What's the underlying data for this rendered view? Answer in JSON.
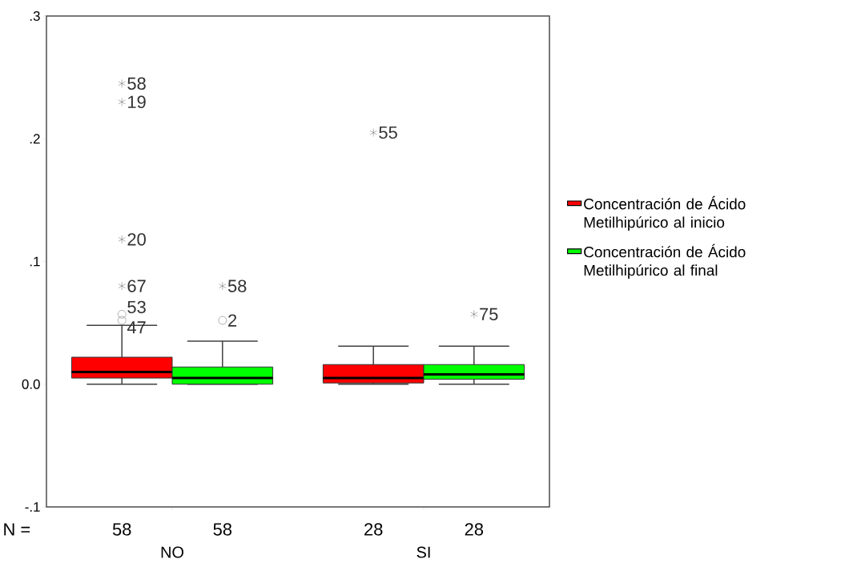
{
  "chart_data": {
    "type": "box",
    "categories": [
      "NO",
      "SI"
    ],
    "series": [
      {
        "name": "Concentración de Ácido Metilhipúrico al inicio",
        "color": "#ff0000",
        "boxes": [
          {
            "low": 0,
            "q1": 0.005,
            "median": 0.01,
            "q3": 0.022,
            "high": 0.048,
            "outliers": [
              0.245,
              0.23,
              0.118,
              0.08,
              0.057,
              0.052
            ]
          },
          {
            "low": 0,
            "q1": 0.001,
            "median": 0.005,
            "q3": 0.016,
            "high": 0.031,
            "outliers": [
              0.205
            ]
          }
        ]
      },
      {
        "name": "Concentración de Ácido Metilhipúrico al final",
        "color": "#00ff00",
        "boxes": [
          {
            "low": 0,
            "q1": 0,
            "median": 0.005,
            "q3": 0.014,
            "high": 0.035,
            "outliers": [
              0.08,
              0.052
            ]
          },
          {
            "low": 0,
            "q1": 0.004,
            "median": 0.008,
            "q3": 0.016,
            "high": 0.031,
            "outliers": [
              0.057
            ]
          }
        ]
      }
    ],
    "ylim": [
      -0.1,
      0.3
    ],
    "yticks": [
      {
        "value": -0.1,
        "label": "-.1"
      },
      {
        "value": 0,
        "label": "0.0"
      },
      {
        "value": 0.1,
        "label": ".1"
      },
      {
        "value": 0.2,
        "label": ".2"
      },
      {
        "value": 0.3,
        "label": ".3"
      }
    ],
    "legend": "right",
    "annotations": [
      "58",
      "19",
      "20",
      "67",
      "53",
      "47",
      "55",
      "58",
      "2",
      "75",
      "N =",
      "58",
      "58",
      "28",
      "28"
    ]
  }
}
